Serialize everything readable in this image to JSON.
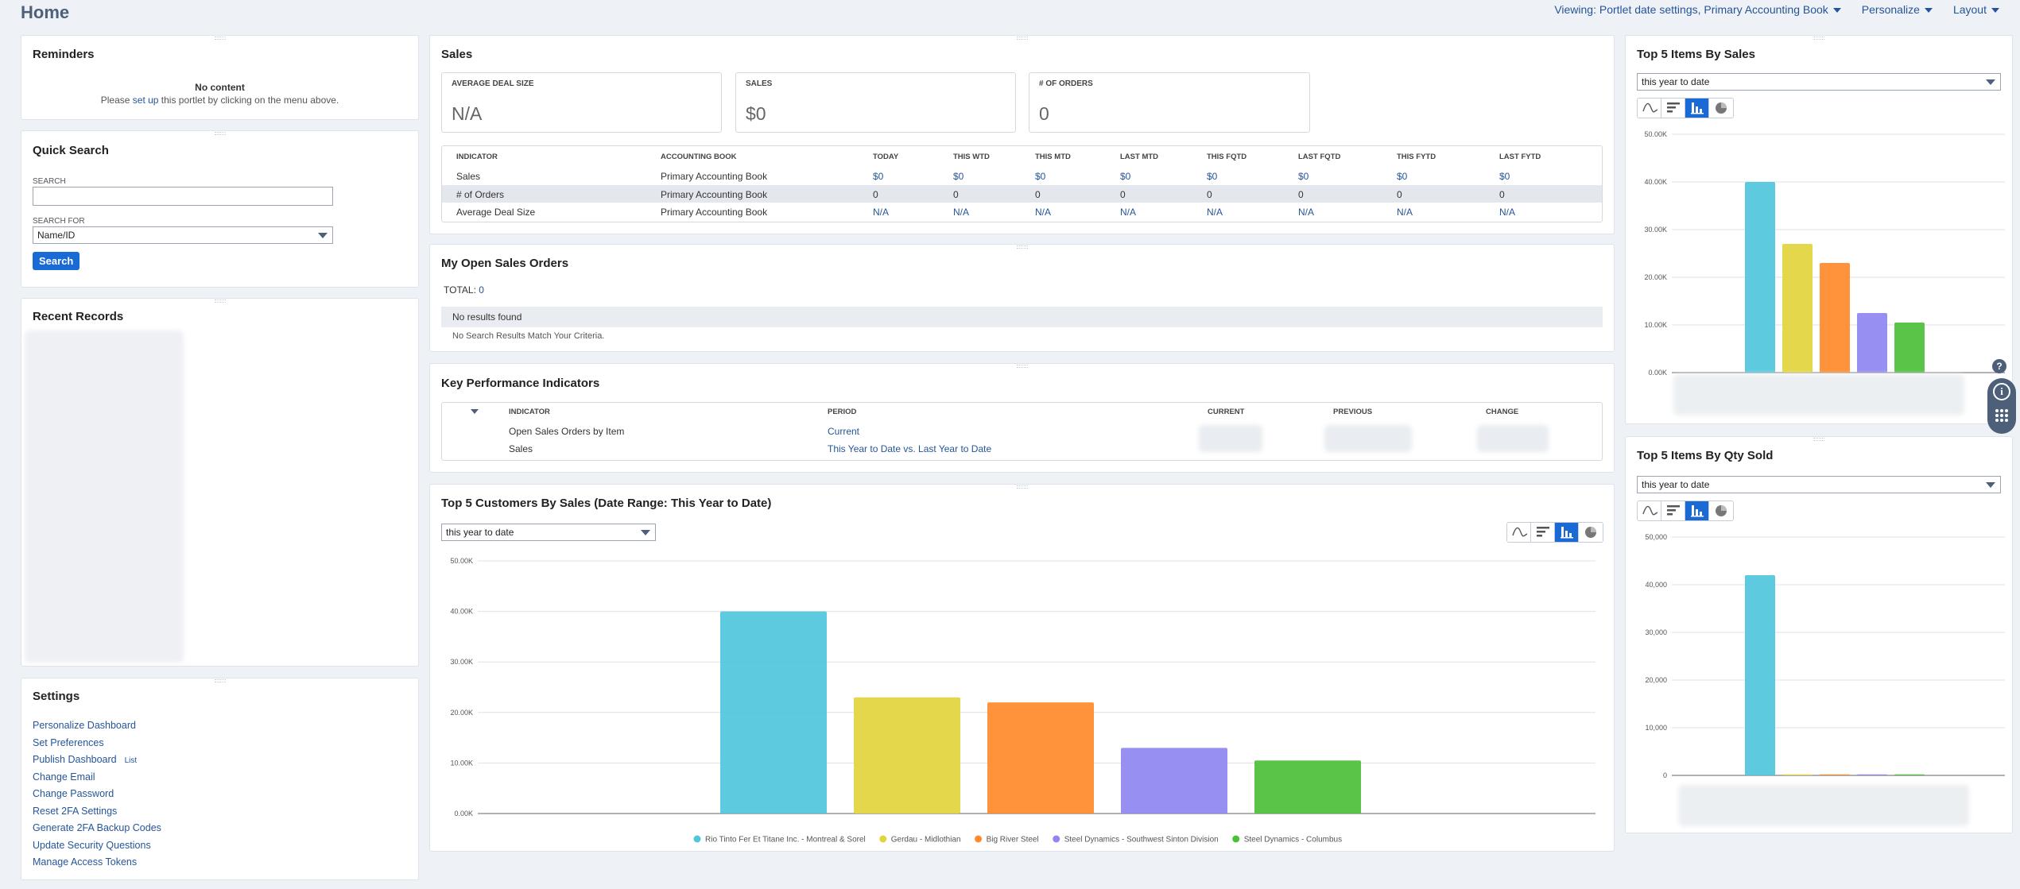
{
  "header": {
    "title": "Home",
    "viewing": "Viewing: Portlet date settings, Primary Accounting Book",
    "personalize": "Personalize",
    "layout": "Layout"
  },
  "reminders": {
    "title": "Reminders",
    "no_content": "No content",
    "msg_before": "Please ",
    "msg_link": "set up",
    "msg_after": " this portlet by clicking on the menu above."
  },
  "quick_search": {
    "title": "Quick Search",
    "search_label": "SEARCH",
    "search_value": "",
    "search_for_label": "SEARCH FOR",
    "search_for_value": "Name/ID",
    "button": "Search"
  },
  "recent_records": {
    "title": "Recent Records"
  },
  "settings": {
    "title": "Settings",
    "links": [
      "Personalize Dashboard",
      "Set Preferences",
      "Publish Dashboard",
      "Change Email",
      "Change Password",
      "Reset 2FA Settings",
      "Generate 2FA Backup Codes",
      "Update Security Questions",
      "Manage Access Tokens"
    ],
    "list_tag": "List"
  },
  "sales": {
    "title": "Sales",
    "boxes": [
      {
        "label": "AVERAGE DEAL SIZE",
        "value": "N/A"
      },
      {
        "label": "SALES",
        "value": "$0"
      },
      {
        "label": "# OF ORDERS",
        "value": "0"
      }
    ],
    "columns": [
      "INDICATOR",
      "ACCOUNTING BOOK",
      "TODAY",
      "THIS WTD",
      "THIS MTD",
      "LAST MTD",
      "THIS FQTD",
      "LAST FQTD",
      "THIS FYTD",
      "LAST FYTD"
    ],
    "rows": [
      [
        "Sales",
        "Primary Accounting Book",
        "$0",
        "$0",
        "$0",
        "$0",
        "$0",
        "$0",
        "$0",
        "$0"
      ],
      [
        "# of Orders",
        "Primary Accounting Book",
        "0",
        "0",
        "0",
        "0",
        "0",
        "0",
        "0",
        "0"
      ],
      [
        "Average Deal Size",
        "Primary Accounting Book",
        "N/A",
        "N/A",
        "N/A",
        "N/A",
        "N/A",
        "N/A",
        "N/A",
        "N/A"
      ]
    ]
  },
  "open_orders": {
    "title": "My Open Sales Orders",
    "total_label": "TOTAL: ",
    "total_value": "0",
    "no_results": "No results found",
    "no_match": "No Search Results Match Your Criteria."
  },
  "kpi": {
    "title": "Key Performance Indicators",
    "columns": [
      "INDICATOR",
      "PERIOD",
      "CURRENT",
      "PREVIOUS",
      "CHANGE"
    ],
    "rows": [
      {
        "indicator": "Open Sales Orders by Item",
        "period": "Current"
      },
      {
        "indicator": "Sales",
        "period": "This Year to Date vs. Last Year to Date"
      }
    ]
  },
  "colors": {
    "series": [
      "#4fc6dc",
      "#e2d43c",
      "#ff8a2a",
      "#8f86f2",
      "#4cbf3a"
    ],
    "accent": "#1a6ad6",
    "link": "#255599"
  },
  "top_customers": {
    "title": "Top 5 Customers By Sales (Date Range: This Year to Date)",
    "range": "this year to date"
  },
  "top_items_sales": {
    "title": "Top 5 Items By Sales",
    "range": "this year to date"
  },
  "top_items_qty": {
    "title": "Top 5 Items By Qty Sold",
    "range": "this year to date"
  },
  "icons": [
    "line-chart-icon",
    "horizontal-bar-icon",
    "column-chart-icon",
    "pie-chart-icon",
    "help-icon",
    "info-icon",
    "grid-dots-icon"
  ],
  "chart_data": [
    {
      "type": "bar",
      "title": "",
      "categories": [
        "Rio Tinto Fer Et Titane Inc. - Montreal & Sorel",
        "Gerdau - Midlothian",
        "Big River Steel",
        "Steel Dynamics - Southwest Sinton Division",
        "Steel Dynamics - Columbus"
      ],
      "values": [
        40000,
        23000,
        22000,
        13000,
        10500
      ],
      "ylim": [
        0,
        50000
      ],
      "yticks": [
        "0.00K",
        "10.00K",
        "20.00K",
        "30.00K",
        "40.00K",
        "50.00K"
      ],
      "legend": "bottom",
      "grid": true
    },
    {
      "type": "bar",
      "title": "",
      "values": [
        40000,
        27000,
        23000,
        12500,
        10500
      ],
      "ylim": [
        0,
        50000
      ],
      "yticks": [
        "0.00K",
        "10.00K",
        "20.00K",
        "30.00K",
        "40.00K",
        "50.00K"
      ],
      "grid": true
    },
    {
      "type": "bar",
      "title": "",
      "values": [
        42000,
        200,
        200,
        200,
        200
      ],
      "ylim": [
        0,
        50000
      ],
      "yticks": [
        "0",
        "10,000",
        "20,000",
        "30,000",
        "40,000",
        "50,000"
      ],
      "grid": true
    }
  ]
}
